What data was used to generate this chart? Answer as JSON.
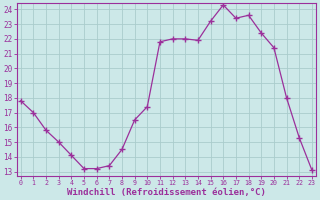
{
  "x": [
    0,
    1,
    2,
    3,
    4,
    5,
    6,
    7,
    8,
    9,
    10,
    11,
    12,
    13,
    14,
    15,
    16,
    17,
    18,
    19,
    20,
    21,
    22,
    23
  ],
  "y": [
    17.8,
    17.0,
    15.8,
    15.0,
    14.1,
    13.2,
    13.2,
    13.4,
    14.5,
    16.5,
    17.4,
    21.8,
    22.0,
    22.0,
    21.9,
    23.2,
    24.3,
    23.4,
    23.6,
    22.4,
    21.4,
    18.0,
    15.3,
    13.1
  ],
  "line_color": "#9b309b",
  "marker": "+",
  "marker_size": 4,
  "marker_lw": 1.0,
  "line_width": 0.9,
  "bg_color": "#cce8e8",
  "grid_color": "#aacccc",
  "xlabel": "Windchill (Refroidissement éolien,°C)",
  "xlabel_fontsize": 6.5,
  "xtick_labels": [
    "0",
    "1",
    "2",
    "3",
    "4",
    "5",
    "6",
    "7",
    "8",
    "9",
    "10",
    "11",
    "12",
    "13",
    "14",
    "15",
    "16",
    "17",
    "18",
    "19",
    "20",
    "21",
    "22",
    "23"
  ],
  "ytick_min": 13,
  "ytick_max": 24,
  "ytick_step": 1,
  "xlim_left": -0.3,
  "xlim_right": 23.3,
  "ylim_bottom": 12.7,
  "ylim_top": 24.4
}
